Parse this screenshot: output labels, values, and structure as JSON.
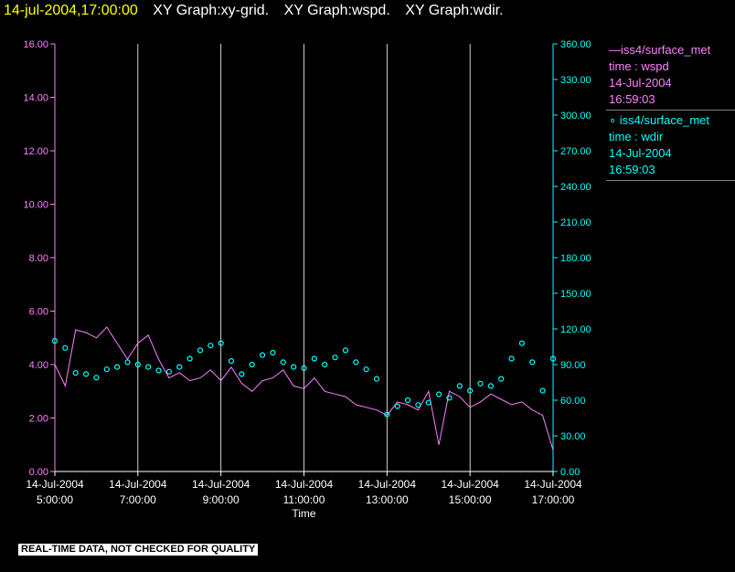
{
  "header": {
    "timestamp": "14-jul-2004,17:00:00",
    "graphs": [
      "XY Graph:xy-grid.",
      "XY Graph:wspd.",
      "XY Graph:wdir."
    ]
  },
  "legend": {
    "series": [
      {
        "label": "—iss4/surface_met",
        "var": "time : wspd",
        "date": "14-Jul-2004",
        "time": "16:59:03"
      },
      {
        "label": "∘ iss4/surface_met",
        "var": "time : wdir",
        "date": "14-Jul-2004",
        "time": "16:59:03"
      }
    ]
  },
  "footer_note": "REAL-TIME DATA, NOT CHECKED FOR QUALITY",
  "colors": {
    "wspd": "#ff80ff",
    "wdir": "#00ffff",
    "grid": "#ffffff",
    "header_ts": "#ffff00"
  },
  "chart_data": {
    "type": "line",
    "xlabel": "Time",
    "x_ticks": [
      {
        "date": "14-Jul-2004",
        "time": "5:00:00",
        "hour": 5
      },
      {
        "date": "14-Jul-2004",
        "time": "7:00:00",
        "hour": 7
      },
      {
        "date": "14-Jul-2004",
        "time": "9:00:00",
        "hour": 9
      },
      {
        "date": "14-Jul-2004",
        "time": "11:00:00",
        "hour": 11
      },
      {
        "date": "14-Jul-2004",
        "time": "13:00:00",
        "hour": 13
      },
      {
        "date": "14-Jul-2004",
        "time": "15:00:00",
        "hour": 15
      },
      {
        "date": "14-Jul-2004",
        "time": "17:00:00",
        "hour": 17
      }
    ],
    "xlim_hours": [
      5,
      17
    ],
    "y_left": {
      "ticks": [
        "0.00",
        "2.00",
        "4.00",
        "6.00",
        "8.00",
        "10.00",
        "12.00",
        "14.00",
        "16.00"
      ],
      "lim": [
        0,
        16
      ]
    },
    "y_right": {
      "ticks": [
        "0.00",
        "30.00",
        "60.00",
        "90.00",
        "120.00",
        "150.00",
        "180.00",
        "210.00",
        "240.00",
        "270.00",
        "300.00",
        "330.00",
        "360.00"
      ],
      "lim": [
        0,
        360
      ]
    },
    "grid": "vertical",
    "series": [
      {
        "name": "time : wspd",
        "type": "line",
        "axis": "left",
        "hours": [
          5.0,
          5.25,
          5.5,
          5.75,
          6.0,
          6.25,
          6.5,
          6.75,
          7.0,
          7.25,
          7.5,
          7.75,
          8.0,
          8.25,
          8.5,
          8.75,
          9.0,
          9.25,
          9.5,
          9.75,
          10.0,
          10.25,
          10.5,
          10.75,
          11.0,
          11.25,
          11.5,
          11.75,
          12.0,
          12.25,
          12.5,
          12.75,
          13.0,
          13.25,
          13.5,
          13.75,
          14.0,
          14.25,
          14.5,
          14.75,
          15.0,
          15.25,
          15.5,
          15.75,
          16.0,
          16.25,
          16.5,
          16.75,
          17.0
        ],
        "values": [
          4.0,
          3.2,
          5.3,
          5.2,
          5.0,
          5.4,
          4.8,
          4.2,
          4.8,
          5.1,
          4.2,
          3.5,
          3.7,
          3.4,
          3.5,
          3.8,
          3.4,
          3.9,
          3.3,
          3.0,
          3.4,
          3.5,
          3.8,
          3.2,
          3.1,
          3.5,
          3.0,
          2.9,
          2.8,
          2.5,
          2.4,
          2.3,
          2.1,
          2.6,
          2.5,
          2.3,
          3.0,
          1.0,
          3.0,
          2.8,
          2.4,
          2.6,
          2.9,
          2.7,
          2.5,
          2.6,
          2.3,
          2.1,
          0.8
        ]
      },
      {
        "name": "time : wdir",
        "type": "scatter",
        "axis": "right",
        "hours": [
          5.0,
          5.25,
          5.5,
          5.75,
          6.0,
          6.25,
          6.5,
          6.75,
          7.0,
          7.25,
          7.5,
          7.75,
          8.0,
          8.25,
          8.5,
          8.75,
          9.0,
          9.25,
          9.5,
          9.75,
          10.0,
          10.25,
          10.5,
          10.75,
          11.0,
          11.25,
          11.5,
          11.75,
          12.0,
          12.25,
          12.5,
          12.75,
          13.0,
          13.25,
          13.5,
          13.75,
          14.0,
          14.25,
          14.5,
          14.75,
          15.0,
          15.25,
          15.5,
          15.75,
          16.0,
          16.25,
          16.5,
          16.75,
          17.0
        ],
        "values": [
          110,
          104,
          83,
          82,
          79,
          86,
          88,
          92,
          90,
          88,
          85,
          84,
          88,
          95,
          102,
          106,
          108,
          93,
          82,
          90,
          98,
          100,
          92,
          88,
          87,
          95,
          90,
          96,
          102,
          92,
          86,
          78,
          48,
          55,
          60,
          56,
          58,
          65,
          62,
          72,
          68,
          74,
          72,
          78,
          95,
          108,
          92,
          68,
          95
        ]
      }
    ]
  }
}
